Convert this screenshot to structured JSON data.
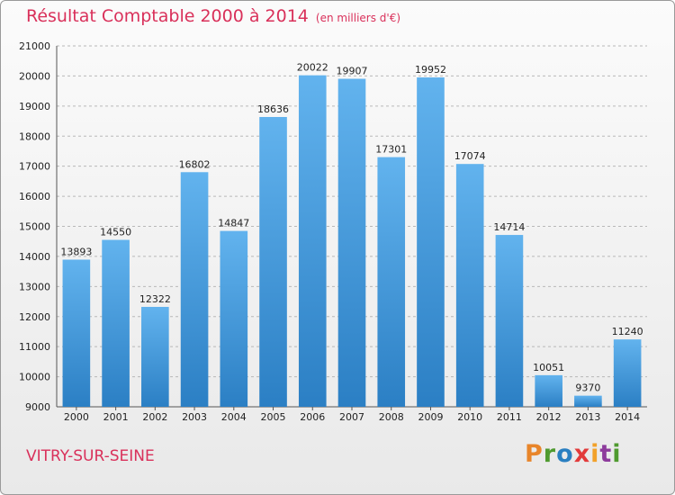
{
  "header": {
    "title": "Résultat Comptable 2000 à 2014",
    "subtitle": "(en milliers d'€)"
  },
  "footer": {
    "city": "VITRY-SUR-SEINE",
    "logo_letters": [
      "P",
      "r",
      "o",
      "x",
      "i",
      "t",
      "i"
    ]
  },
  "colors": {
    "bar_top": "#62b3ee",
    "bar_bottom": "#2b7fc4",
    "title": "#d9305a"
  },
  "chart_data": {
    "type": "bar",
    "title": "Résultat Comptable 2000 à 2014",
    "subtitle": "(en milliers d'€)",
    "xlabel": "",
    "ylabel": "",
    "categories": [
      "2000",
      "2001",
      "2002",
      "2003",
      "2004",
      "2005",
      "2006",
      "2007",
      "2008",
      "2009",
      "2010",
      "2011",
      "2012",
      "2013",
      "2014"
    ],
    "values": [
      13893,
      14550,
      12322,
      16802,
      14847,
      18636,
      20022,
      19907,
      17301,
      19952,
      17074,
      14714,
      10051,
      9370,
      11240
    ],
    "value_labels": [
      "13893",
      "14550",
      "12322",
      "16802",
      "14847",
      "18636",
      "20022",
      "19907",
      "17301",
      "19952",
      "17074",
      "14714",
      "10051",
      "9370",
      "11240"
    ],
    "ylim": [
      9000,
      21000
    ],
    "yticks": [
      9000,
      10000,
      11000,
      12000,
      13000,
      14000,
      15000,
      16000,
      17000,
      18000,
      19000,
      20000,
      21000
    ],
    "ytick_labels": [
      "9000",
      "10000",
      "11000",
      "12000",
      "13000",
      "14000",
      "15000",
      "16000",
      "17000",
      "18000",
      "19000",
      "20000",
      "21000"
    ],
    "grid": "horizontal-dashed"
  }
}
